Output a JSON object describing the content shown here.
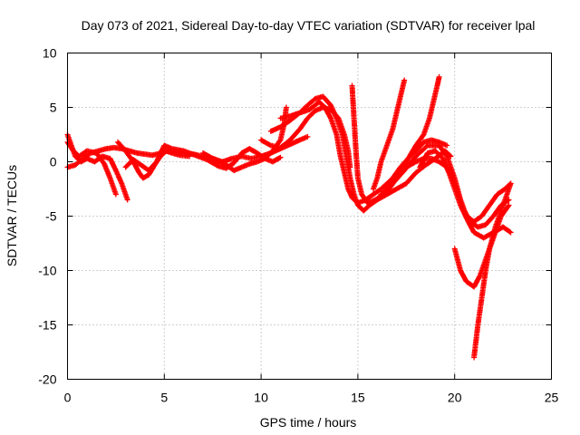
{
  "chart_data": {
    "type": "scatter",
    "title": "Day 073 of 2021, Sidereal Day-to-day VTEC variation (SDTVAR) for receiver lpal",
    "xlabel": "GPS time / hours",
    "ylabel": "SDTVAR / TECUs",
    "xlim": [
      0,
      25
    ],
    "ylim": [
      -20,
      10
    ],
    "x_ticks": [
      "0",
      "5",
      "10",
      "15",
      "20",
      "25"
    ],
    "y_ticks": [
      "-20",
      "-15",
      "-10",
      "-5",
      "0",
      "5",
      "10"
    ],
    "grid": true,
    "marker": "plus",
    "color": "#ff0000",
    "series": [
      {
        "points": [
          [
            0.0,
            2.5
          ],
          [
            0.2,
            1.5
          ],
          [
            0.4,
            0.5
          ],
          [
            0.7,
            0.0
          ],
          [
            1.0,
            0.3
          ],
          [
            1.4,
            0.0
          ],
          [
            1.8,
            0.5
          ],
          [
            2.2,
            0.3
          ],
          [
            2.5,
            -0.8
          ],
          [
            2.8,
            -2.0
          ],
          [
            3.1,
            -3.5
          ]
        ]
      },
      {
        "points": [
          [
            0.0,
            1.8
          ],
          [
            0.3,
            1.0
          ],
          [
            0.6,
            0.5
          ],
          [
            1.0,
            1.0
          ],
          [
            1.5,
            0.8
          ],
          [
            1.9,
            -0.2
          ],
          [
            2.2,
            -1.5
          ],
          [
            2.5,
            -3.0
          ]
        ]
      },
      {
        "points": [
          [
            0.0,
            -0.5
          ],
          [
            0.4,
            -0.3
          ],
          [
            0.8,
            0.3
          ],
          [
            1.2,
            0.8
          ],
          [
            1.6,
            1.0
          ],
          [
            2.0,
            1.2
          ],
          [
            2.4,
            1.3
          ],
          [
            2.8,
            1.2
          ],
          [
            3.2,
            1.0
          ],
          [
            3.6,
            0.8
          ],
          [
            4.0,
            0.7
          ],
          [
            4.4,
            0.6
          ],
          [
            4.8,
            0.8
          ],
          [
            5.2,
            1.0
          ],
          [
            5.6,
            0.9
          ],
          [
            6.0,
            0.8
          ],
          [
            6.5,
            0.7
          ],
          [
            7.0,
            0.5
          ],
          [
            7.5,
            0.3
          ],
          [
            8.0,
            0.0
          ],
          [
            8.5,
            0.3
          ],
          [
            9.0,
            0.5
          ],
          [
            9.5,
            0.3
          ],
          [
            10.0,
            0.5
          ],
          [
            10.5,
            0.8
          ],
          [
            11.0,
            1.2
          ],
          [
            11.5,
            1.6
          ],
          [
            12.0,
            2.0
          ],
          [
            12.4,
            2.3
          ]
        ]
      },
      {
        "points": [
          [
            2.6,
            1.8
          ],
          [
            3.0,
            1.0
          ],
          [
            3.4,
            0.0
          ],
          [
            3.7,
            -1.0
          ],
          [
            3.9,
            -1.5
          ],
          [
            4.2,
            -1.2
          ],
          [
            4.5,
            -0.3
          ],
          [
            4.8,
            0.5
          ],
          [
            5.1,
            1.0
          ],
          [
            5.4,
            0.8
          ],
          [
            5.8,
            0.6
          ],
          [
            6.3,
            0.5
          ]
        ]
      },
      {
        "points": [
          [
            3.0,
            -0.5
          ],
          [
            3.4,
            0.2
          ],
          [
            3.8,
            -0.3
          ],
          [
            4.2,
            -0.8
          ],
          [
            4.6,
            0.0
          ],
          [
            5.0,
            1.5
          ],
          [
            5.4,
            1.2
          ],
          [
            6.0,
            1.0
          ],
          [
            6.6,
            0.6
          ],
          [
            7.2,
            0.2
          ],
          [
            7.8,
            -0.4
          ],
          [
            8.2,
            -0.6
          ],
          [
            8.6,
            -0.1
          ],
          [
            9.0,
            0.8
          ],
          [
            9.4,
            1.2
          ],
          [
            9.8,
            0.8
          ],
          [
            10.2,
            0.3
          ],
          [
            10.6,
            0.0
          ],
          [
            11.0,
            0.4
          ]
        ]
      },
      {
        "points": [
          [
            7.0,
            0.8
          ],
          [
            7.4,
            0.4
          ],
          [
            7.8,
            0.0
          ],
          [
            8.2,
            -0.3
          ],
          [
            8.6,
            -0.8
          ],
          [
            9.0,
            -0.5
          ],
          [
            9.4,
            -0.2
          ],
          [
            9.8,
            0.0
          ],
          [
            10.2,
            0.3
          ],
          [
            10.6,
            1.0
          ],
          [
            11.0,
            2.0
          ],
          [
            11.2,
            3.5
          ],
          [
            11.3,
            5.0
          ]
        ]
      },
      {
        "points": [
          [
            10.0,
            2.0
          ],
          [
            10.5,
            1.5
          ],
          [
            11.0,
            1.3
          ],
          [
            11.5,
            2.0
          ],
          [
            12.0,
            3.0
          ],
          [
            12.4,
            4.0
          ],
          [
            12.8,
            4.7
          ],
          [
            13.2,
            5.0
          ],
          [
            13.6,
            4.8
          ],
          [
            14.0,
            4.0
          ],
          [
            14.3,
            2.5
          ],
          [
            14.5,
            1.0
          ],
          [
            14.6,
            -0.5
          ]
        ]
      },
      {
        "points": [
          [
            10.5,
            2.8
          ],
          [
            11.0,
            3.2
          ],
          [
            11.5,
            3.8
          ],
          [
            12.0,
            4.5
          ],
          [
            12.4,
            5.2
          ],
          [
            12.8,
            5.8
          ],
          [
            13.2,
            6.0
          ],
          [
            13.6,
            5.2
          ],
          [
            13.9,
            4.0
          ],
          [
            14.2,
            2.5
          ],
          [
            14.4,
            0.5
          ],
          [
            14.6,
            -1.5
          ],
          [
            14.8,
            -3.0
          ],
          [
            15.0,
            -4.0
          ],
          [
            15.3,
            -4.5
          ],
          [
            15.6,
            -4.0
          ],
          [
            16.0,
            -3.5
          ],
          [
            16.5,
            -3.0
          ],
          [
            17.0,
            -2.5
          ],
          [
            17.5,
            -2.0
          ],
          [
            18.0,
            -1.0
          ],
          [
            18.5,
            -0.3
          ],
          [
            19.0,
            0.3
          ],
          [
            19.5,
            1.0
          ],
          [
            19.8,
            0.5
          ]
        ]
      },
      {
        "points": [
          [
            11.0,
            4.0
          ],
          [
            11.5,
            4.2
          ],
          [
            12.0,
            4.5
          ],
          [
            12.5,
            4.8
          ],
          [
            13.0,
            5.5
          ],
          [
            13.3,
            5.0
          ],
          [
            13.6,
            4.0
          ],
          [
            13.9,
            2.5
          ],
          [
            14.1,
            0.5
          ],
          [
            14.3,
            -1.0
          ],
          [
            14.5,
            -2.5
          ],
          [
            14.7,
            -3.3
          ],
          [
            15.0,
            -3.8
          ],
          [
            15.4,
            -3.5
          ],
          [
            15.8,
            -3.0
          ],
          [
            16.2,
            -2.5
          ],
          [
            16.8,
            -1.5
          ],
          [
            17.2,
            -0.5
          ],
          [
            17.6,
            0.3
          ],
          [
            18.0,
            1.0
          ],
          [
            18.4,
            1.8
          ],
          [
            18.8,
            2.0
          ],
          [
            19.2,
            1.8
          ],
          [
            19.6,
            1.5
          ]
        ]
      },
      {
        "points": [
          [
            14.7,
            7.0
          ],
          [
            14.8,
            4.0
          ],
          [
            14.9,
            1.0
          ],
          [
            15.0,
            -1.5
          ],
          [
            15.2,
            -3.0
          ],
          [
            15.5,
            -3.8
          ],
          [
            15.9,
            -3.5
          ],
          [
            16.3,
            -3.0
          ],
          [
            16.7,
            -2.0
          ],
          [
            17.1,
            -1.0
          ],
          [
            17.5,
            -0.5
          ],
          [
            18.0,
            0.0
          ],
          [
            18.4,
            0.3
          ],
          [
            18.8,
            0.3
          ],
          [
            19.2,
            0.0
          ],
          [
            19.6,
            -0.5
          ],
          [
            19.9,
            -1.5
          ],
          [
            20.2,
            -3.0
          ],
          [
            20.5,
            -4.5
          ],
          [
            20.8,
            -5.5
          ],
          [
            21.2,
            -6.0
          ],
          [
            21.6,
            -5.8
          ],
          [
            22.0,
            -5.0
          ],
          [
            22.4,
            -4.0
          ],
          [
            22.8,
            -3.5
          ]
        ]
      },
      {
        "points": [
          [
            15.8,
            -2.5
          ],
          [
            16.0,
            -1.5
          ],
          [
            16.2,
            0.0
          ],
          [
            16.5,
            1.5
          ],
          [
            16.8,
            3.0
          ],
          [
            17.0,
            4.5
          ],
          [
            17.2,
            6.0
          ],
          [
            17.4,
            7.5
          ]
        ]
      },
      {
        "points": [
          [
            16.5,
            -2.8
          ],
          [
            17.0,
            -1.5
          ],
          [
            17.5,
            0.0
          ],
          [
            18.0,
            1.5
          ],
          [
            18.4,
            2.5
          ],
          [
            18.7,
            4.0
          ],
          [
            18.9,
            5.5
          ],
          [
            19.1,
            7.0
          ],
          [
            19.2,
            7.8
          ]
        ]
      },
      {
        "points": [
          [
            16.2,
            -3.0
          ],
          [
            16.8,
            -2.0
          ],
          [
            17.4,
            -0.8
          ],
          [
            18.0,
            0.5
          ],
          [
            18.6,
            1.5
          ],
          [
            19.2,
            1.5
          ],
          [
            19.6,
            0.5
          ],
          [
            20.0,
            -1.5
          ],
          [
            20.3,
            -3.5
          ],
          [
            20.6,
            -5.0
          ],
          [
            21.0,
            -5.5
          ],
          [
            21.4,
            -5.0
          ],
          [
            21.8,
            -4.0
          ],
          [
            22.2,
            -3.0
          ],
          [
            22.6,
            -2.5
          ],
          [
            22.9,
            -2.0
          ]
        ]
      },
      {
        "points": [
          [
            18.2,
            -0.5
          ],
          [
            18.6,
            0.8
          ],
          [
            19.0,
            1.0
          ],
          [
            19.4,
            0.3
          ],
          [
            19.7,
            -1.0
          ],
          [
            20.0,
            -2.5
          ],
          [
            20.3,
            -4.0
          ],
          [
            20.7,
            -5.5
          ],
          [
            21.0,
            -6.5
          ],
          [
            21.5,
            -7.0
          ],
          [
            22.0,
            -6.5
          ],
          [
            22.5,
            -6.0
          ],
          [
            22.9,
            -6.5
          ]
        ]
      },
      {
        "points": [
          [
            20.0,
            -8.0
          ],
          [
            20.3,
            -10.0
          ],
          [
            20.6,
            -11.0
          ],
          [
            21.0,
            -11.5
          ],
          [
            21.3,
            -10.5
          ],
          [
            21.6,
            -9.0
          ],
          [
            22.0,
            -7.0
          ],
          [
            22.4,
            -5.0
          ],
          [
            22.8,
            -4.0
          ]
        ]
      },
      {
        "points": [
          [
            21.0,
            -18.0
          ],
          [
            21.2,
            -15.0
          ],
          [
            21.4,
            -12.5
          ],
          [
            21.6,
            -10.0
          ],
          [
            21.8,
            -8.0
          ],
          [
            22.1,
            -6.0
          ],
          [
            22.4,
            -4.5
          ],
          [
            22.7,
            -3.0
          ],
          [
            22.9,
            -2.0
          ]
        ]
      }
    ]
  }
}
